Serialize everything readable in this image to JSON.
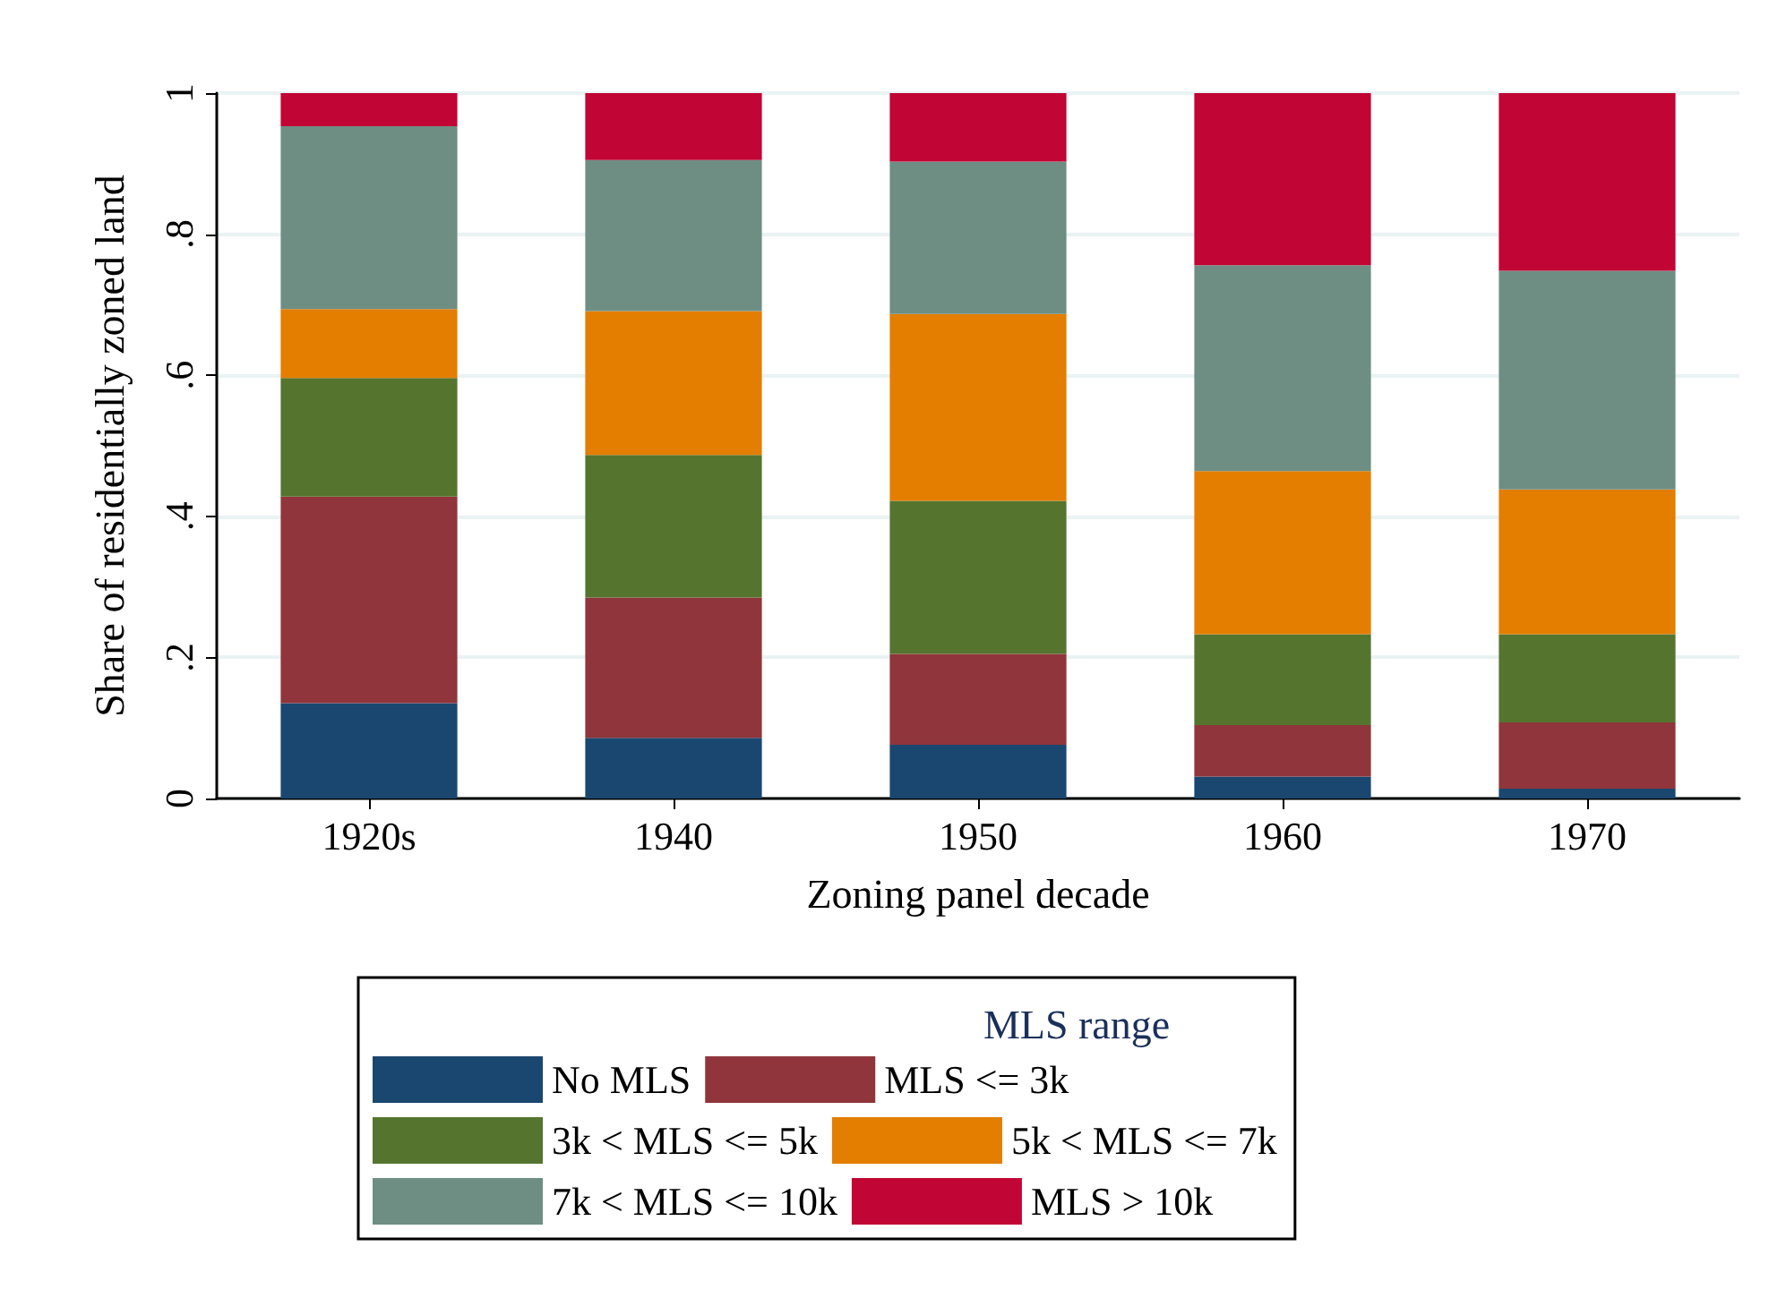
{
  "chart_data": {
    "type": "bar",
    "stacked": true,
    "xlabel": "Zoning panel decade",
    "ylabel": "Share of residentially zoned land",
    "legend_title": "MLS range",
    "legend": "bottom",
    "grid": "y",
    "categories": [
      "1920s",
      "1940",
      "1950",
      "1960",
      "1970"
    ],
    "ylim": [
      0,
      1
    ],
    "yticks": [
      {
        "value": 0,
        "label": "0"
      },
      {
        "value": 0.2,
        "label": ".2"
      },
      {
        "value": 0.4,
        "label": ".4"
      },
      {
        "value": 0.6,
        "label": ".6"
      },
      {
        "value": 0.8,
        "label": ".8"
      },
      {
        "value": 1,
        "label": "1"
      }
    ],
    "series": [
      {
        "name": "No MLS",
        "color": "#1a476f",
        "values": [
          0.135,
          0.086,
          0.076,
          0.031,
          0.014
        ]
      },
      {
        "name": "MLS <= 3k",
        "color": "#90353b",
        "values": [
          0.293,
          0.199,
          0.129,
          0.073,
          0.094
        ]
      },
      {
        "name": "3k < MLS <= 5k",
        "color": "#55752f",
        "values": [
          0.168,
          0.202,
          0.217,
          0.129,
          0.125
        ]
      },
      {
        "name": "5k < MLS <= 7k",
        "color": "#e37e00",
        "values": [
          0.098,
          0.204,
          0.265,
          0.231,
          0.205
        ]
      },
      {
        "name": "7k < MLS <= 10k",
        "color": "#6e8e84",
        "values": [
          0.259,
          0.214,
          0.216,
          0.292,
          0.31
        ]
      },
      {
        "name": "MLS > 10k",
        "color": "#c10534",
        "values": [
          0.047,
          0.095,
          0.097,
          0.244,
          0.252
        ]
      }
    ]
  }
}
